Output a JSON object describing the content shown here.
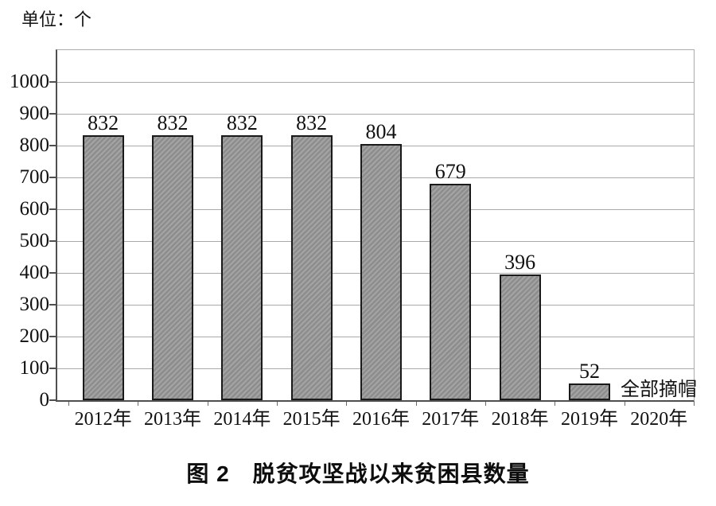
{
  "unit_label": "单位：个",
  "caption": "图 2　脱贫攻坚战以来贫困县数量",
  "chart_data": {
    "type": "bar",
    "title": "图 2 脱贫攻坚战以来贫困县数量",
    "unit": "单位：个",
    "categories": [
      "2012年",
      "2013年",
      "2014年",
      "2015年",
      "2016年",
      "2017年",
      "2018年",
      "2019年",
      "2020年"
    ],
    "values": [
      832,
      832,
      832,
      832,
      804,
      679,
      396,
      52,
      null
    ],
    "data_labels": [
      "832",
      "832",
      "832",
      "832",
      "804",
      "679",
      "396",
      "52",
      ""
    ],
    "annotation": {
      "text": "全部摘帽",
      "category": "2020年",
      "category_index": 8
    },
    "xlabel": "",
    "ylabel": "",
    "ylim": [
      0,
      1100
    ],
    "yticks": [
      0,
      100,
      200,
      300,
      400,
      500,
      600,
      700,
      800,
      900,
      1000
    ],
    "grid": true,
    "legend_position": "none",
    "colors": {
      "bar_fill": "#8d8d8d",
      "bar_hatch": "#a4a4a4",
      "bar_border": "#1a1a1a",
      "gridline": "#a9a9a9",
      "axis": "#4f4f4f",
      "frame": "#ababab",
      "text": "#111111"
    }
  }
}
